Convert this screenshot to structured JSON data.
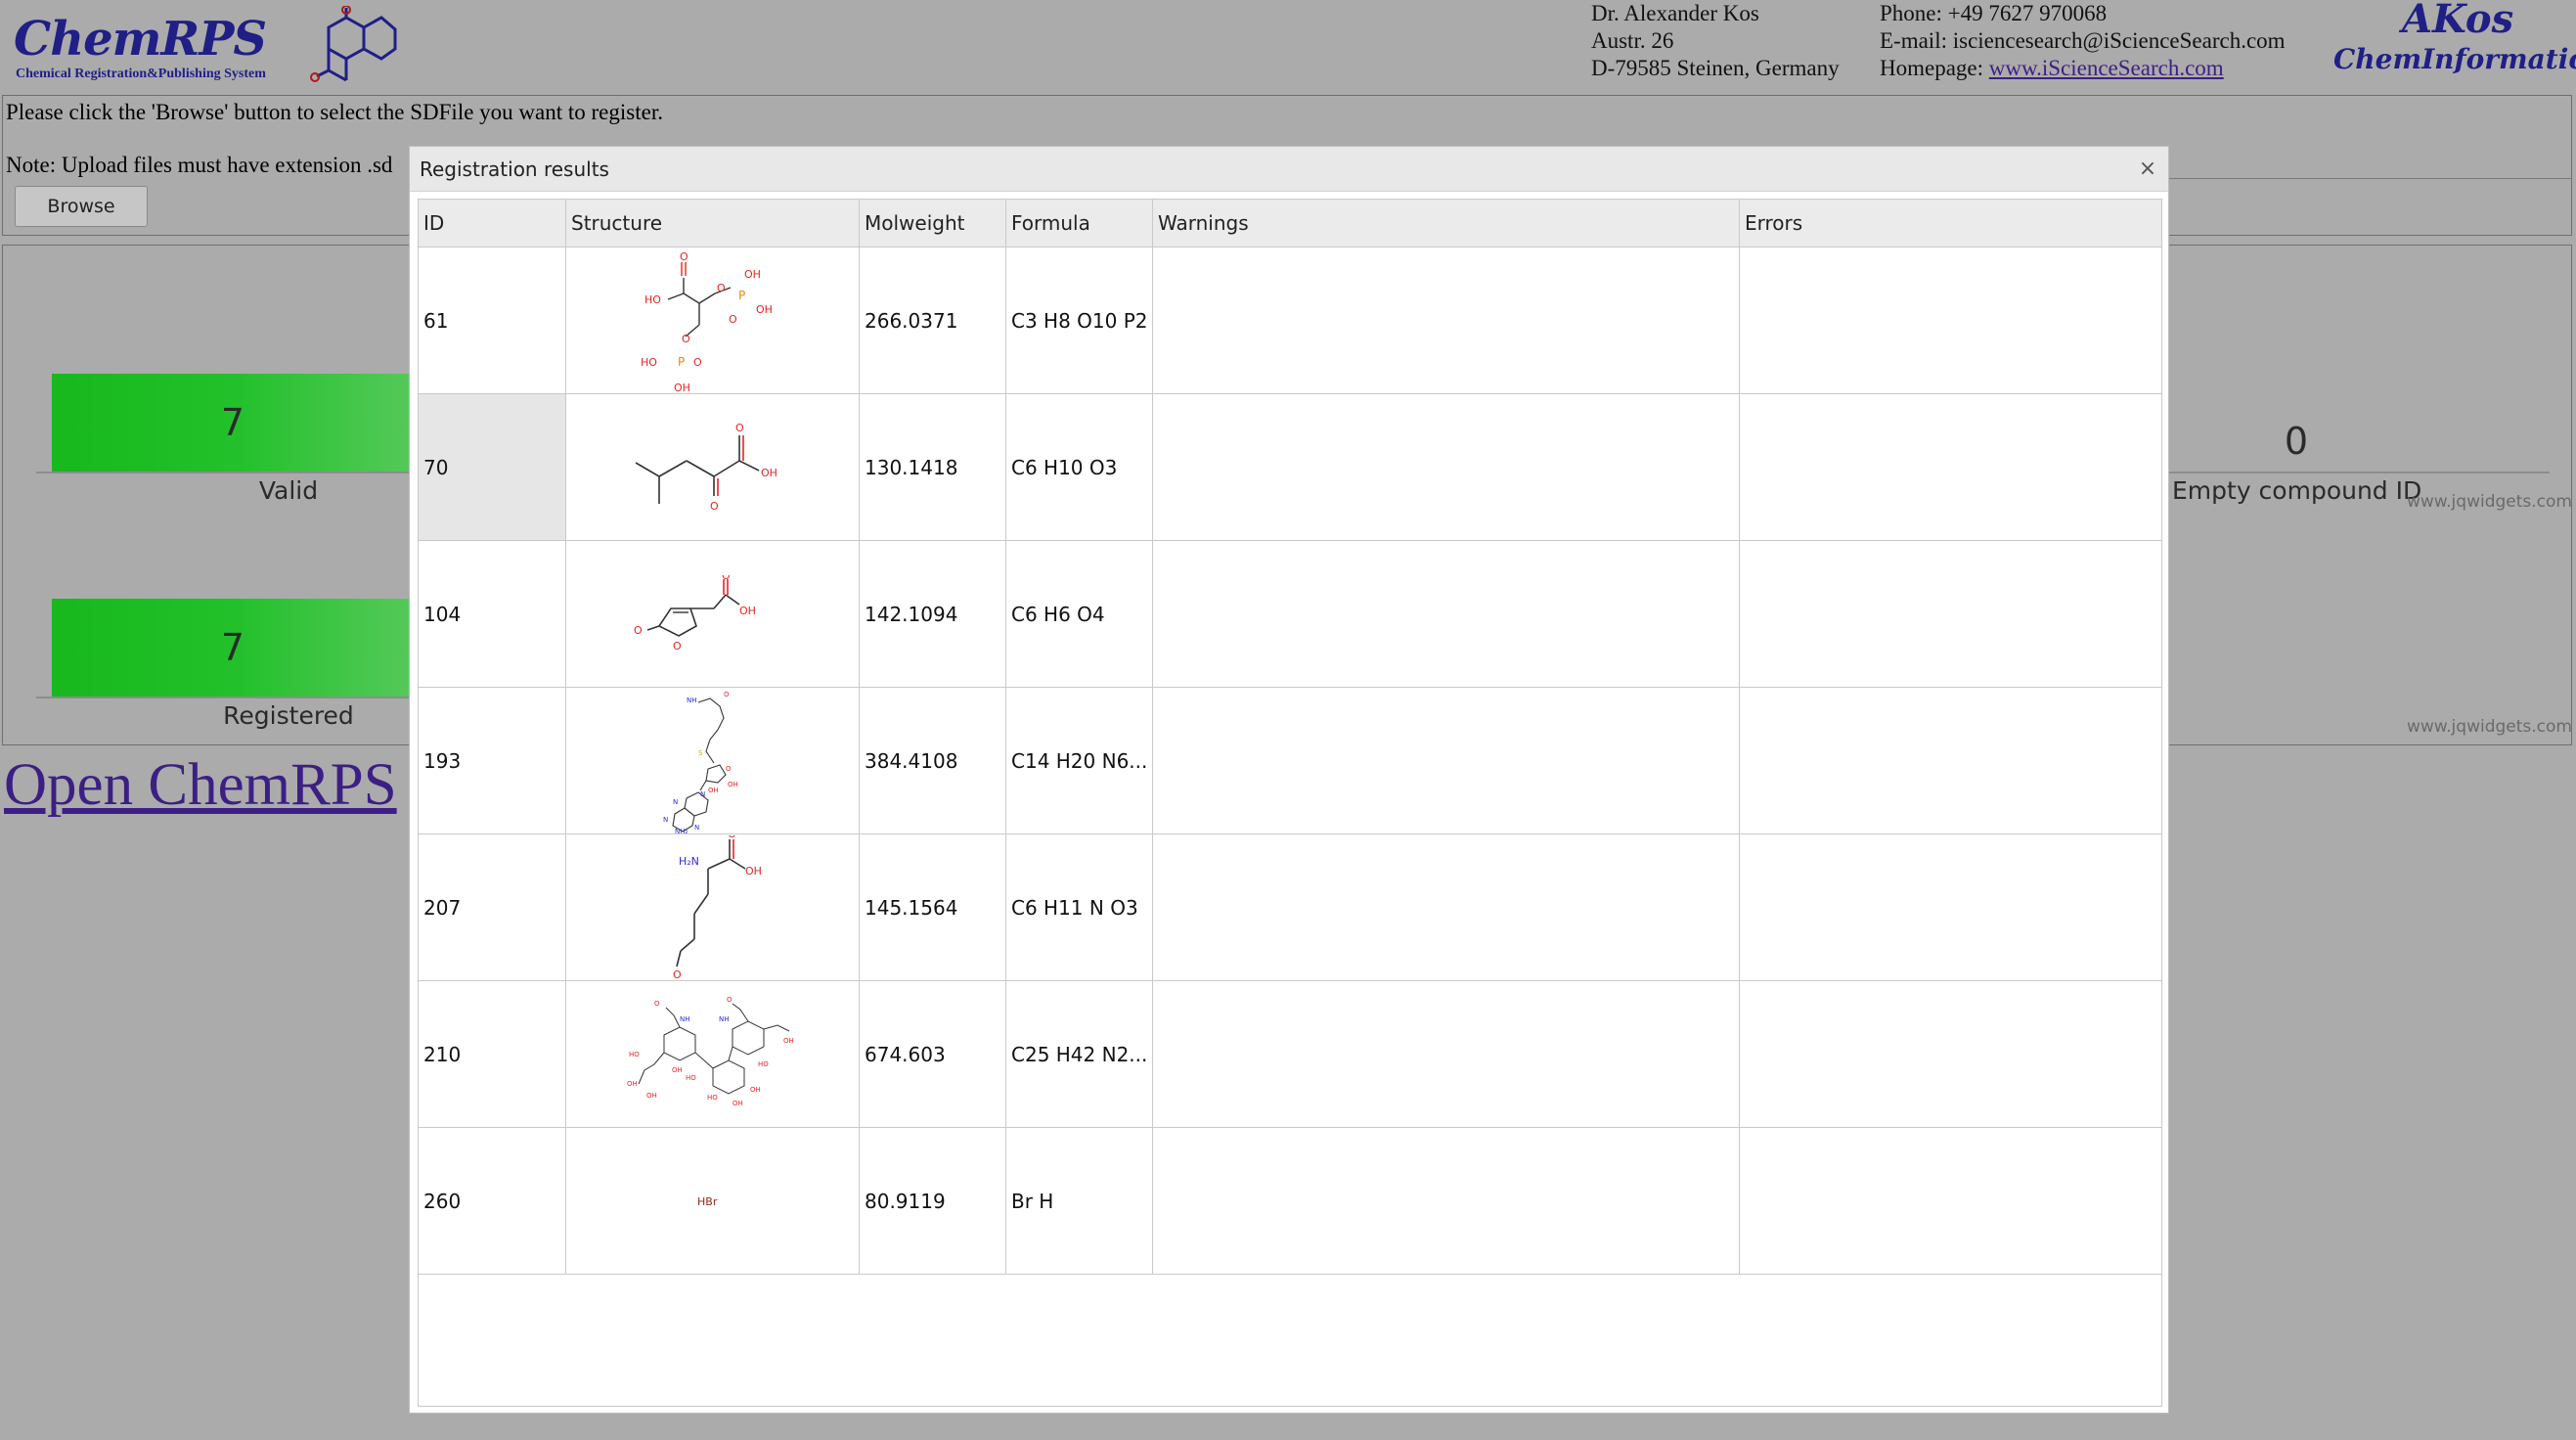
{
  "header": {
    "logo_text": "ChemRPS",
    "logo_subtitle": "Chemical Registration&Publishing System",
    "address": [
      "Dr. Alexander Kos",
      "Austr. 26",
      "D-79585 Steinen, Germany"
    ],
    "phone": "Phone: +49 7627 970068",
    "email": "E-mail: isciencesearch@iScienceSearch.com",
    "homepage_label": "Homepage:",
    "homepage_link": "www.iScienceSearch.com",
    "brand_top": "AKos",
    "brand_bottom": "ChemInformatics"
  },
  "upload": {
    "instruction": "Please click the 'Browse' button to select the SDFile you want to register.",
    "note": "Note: Upload files must have extension .sd",
    "browse_label": "Browse"
  },
  "stats": {
    "valid": {
      "count": "7",
      "label": "Valid"
    },
    "registered": {
      "count": "7",
      "label": "Registered"
    },
    "empty_id": {
      "count": "0",
      "label": "Empty compound ID"
    },
    "watermark": "www.jqwidgets.com"
  },
  "open_link": "Open ChemRPS",
  "dialog": {
    "title": "Registration results",
    "close": "×",
    "columns": [
      "ID",
      "Structure",
      "Molweight",
      "Formula",
      "Warnings",
      "Errors"
    ],
    "rows": [
      {
        "id": "61",
        "structure_icon": "structure-61-diphosphoglycerate",
        "molweight": "266.0371",
        "formula": "C3 H8 O10 P2",
        "warnings": "",
        "errors": ""
      },
      {
        "id": "70",
        "structure_icon": "structure-70-keto-acid",
        "molweight": "130.1418",
        "formula": "C6 H10 O3",
        "warnings": "",
        "errors": ""
      },
      {
        "id": "104",
        "structure_icon": "structure-104-furanone-acetic-acid",
        "molweight": "142.1094",
        "formula": "C6 H6 O4",
        "warnings": "",
        "errors": ""
      },
      {
        "id": "193",
        "structure_icon": "structure-193-nucleoside",
        "molweight": "384.4108",
        "formula": "C14 H20 N6...",
        "warnings": "",
        "errors": ""
      },
      {
        "id": "207",
        "structure_icon": "structure-207-amino-acid",
        "molweight": "145.1564",
        "formula": "C6 H11 N O3",
        "warnings": "",
        "errors": ""
      },
      {
        "id": "210",
        "structure_icon": "structure-210-glycan",
        "molweight": "674.603",
        "formula": "C25 H42 N2...",
        "warnings": "",
        "errors": ""
      },
      {
        "id": "260",
        "structure_icon": "structure-260-hbr",
        "molweight": "80.9119",
        "formula": "Br H",
        "warnings": "",
        "errors": ""
      }
    ],
    "selected_row": "70",
    "hbr_label": "HBr"
  },
  "colors": {
    "background": "#ababab",
    "gauge_green": "#17b81d",
    "link": "#3c1f84",
    "logo": "#1f1f86",
    "oxygen": "#e8231f",
    "nitrogen": "#2a2ad8",
    "phosphorus": "#e88a0a",
    "sulfur": "#c8b400"
  }
}
